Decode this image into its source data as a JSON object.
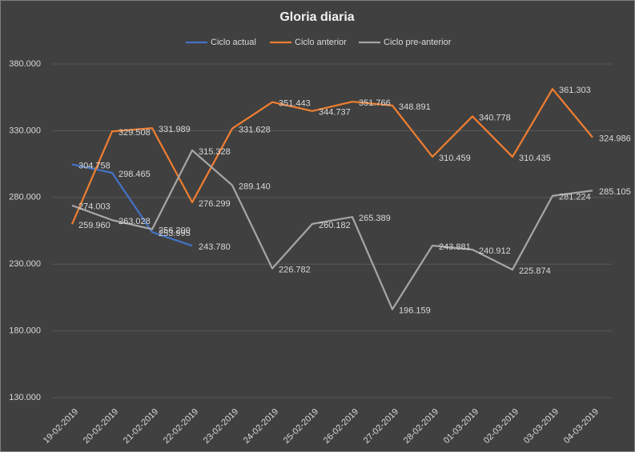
{
  "chart_data": {
    "type": "line",
    "title": "Gloria diaria",
    "categories": [
      "19-02-2019",
      "20-02-2019",
      "21-02-2019",
      "22-02-2019",
      "23-02-2019",
      "24-02-2019",
      "25-02-2019",
      "26-02-2019",
      "27-02-2019",
      "28-02-2019",
      "01-03-2019",
      "02-03-2019",
      "03-03-2019",
      "04-03-2019"
    ],
    "series": [
      {
        "name": "Ciclo actual",
        "color": "#4472c4",
        "values": [
          304758,
          298465,
          253995,
          243780,
          null,
          null,
          null,
          null,
          null,
          null,
          null,
          null,
          null,
          null
        ],
        "value_labels": [
          "304.758",
          "298.465",
          "253.995",
          "243.780",
          null,
          null,
          null,
          null,
          null,
          null,
          null,
          null,
          null,
          null
        ]
      },
      {
        "name": "Ciclo anterior",
        "color": "#ed7d31",
        "values": [
          259960,
          329508,
          331989,
          276299,
          331628,
          351443,
          344737,
          351766,
          348891,
          310459,
          340778,
          310435,
          361303,
          324986
        ],
        "value_labels": [
          "259.960",
          "329.508",
          "331.989",
          "276.299",
          "331.628",
          "351.443",
          "344.737",
          "351.766",
          "348.891",
          "310.459",
          "340.778",
          "310.435",
          "361.303",
          "324.986"
        ]
      },
      {
        "name": "Ciclo pre-anterior",
        "color": "#a5a5a5",
        "values": [
          274003,
          263028,
          256200,
          315328,
          289140,
          226782,
          260182,
          265389,
          196159,
          243881,
          240912,
          225874,
          281224,
          285105
        ],
        "value_labels": [
          "274.003",
          "263.028",
          "256.200",
          "315.328",
          "289.140",
          "226.782",
          "260.182",
          "265.389",
          "196.159",
          "243.881",
          "240.912",
          "225.874",
          "281.224",
          "285.105"
        ]
      }
    ],
    "ylim": [
      130000,
      380000
    ],
    "yticks": [
      {
        "value": 130000,
        "label": "130.000"
      },
      {
        "value": 180000,
        "label": "180.000"
      },
      {
        "value": 230000,
        "label": "230.000"
      },
      {
        "value": 280000,
        "label": "280.000"
      },
      {
        "value": 330000,
        "label": "330.000"
      },
      {
        "value": 380000,
        "label": "380.000"
      }
    ],
    "grid": true,
    "legend": "top"
  }
}
